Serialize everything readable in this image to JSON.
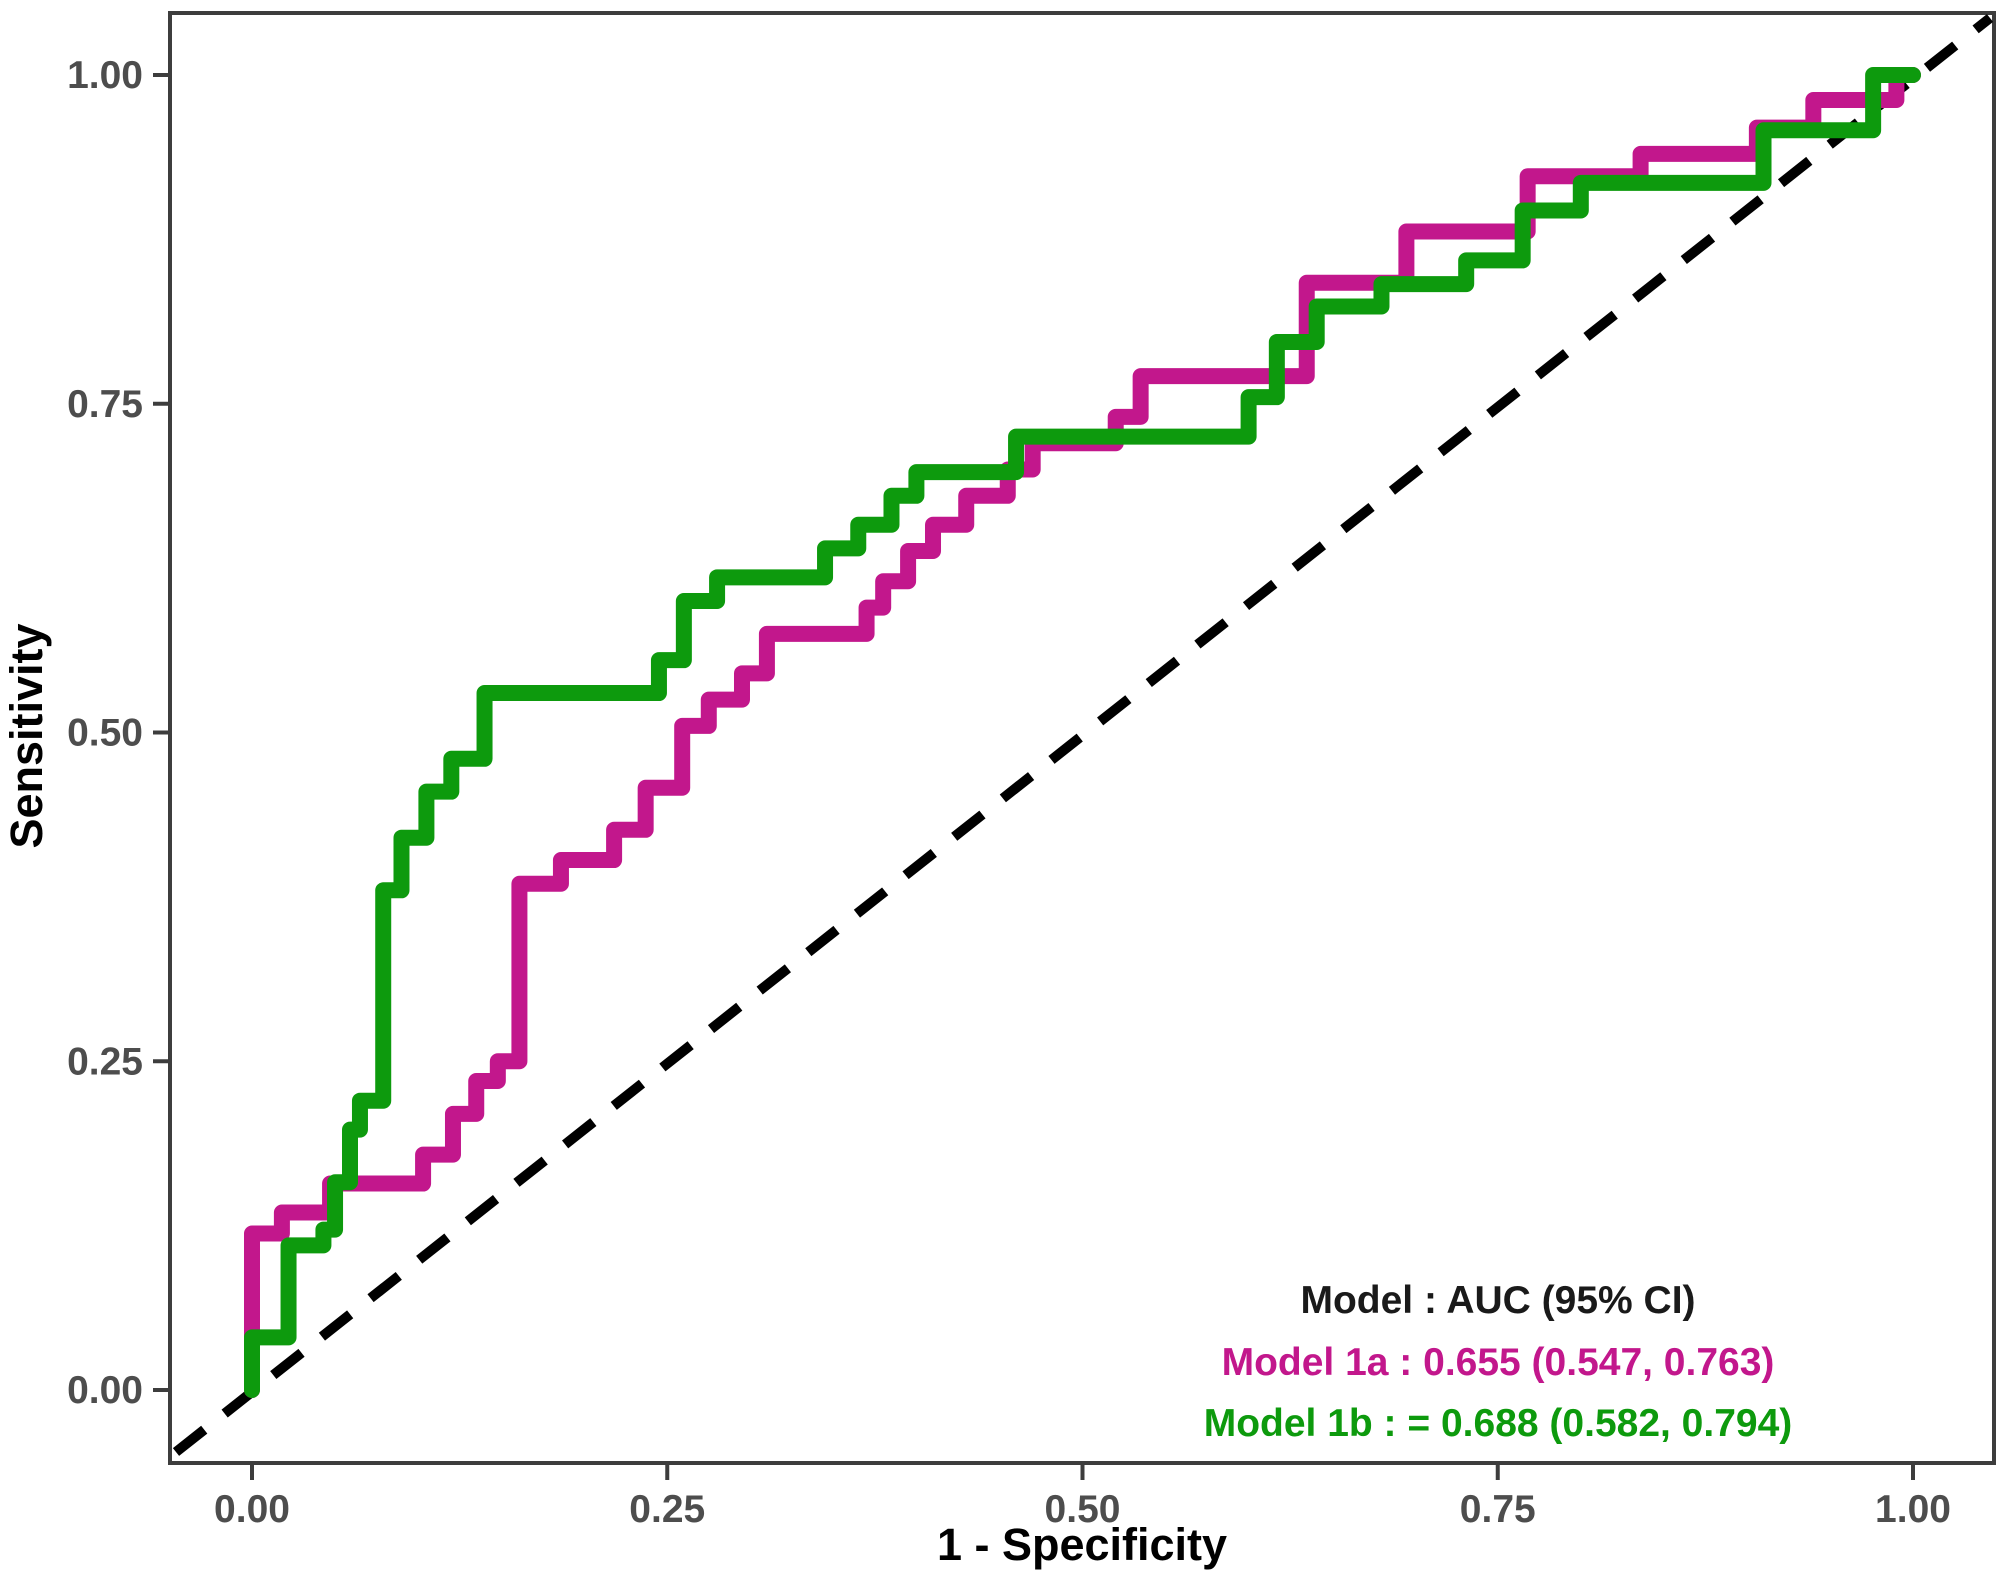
{
  "chart_data": {
    "type": "line",
    "subtype": "roc-step-curves",
    "title": "",
    "xlabel": "1 - Specificity",
    "ylabel": "Sensitivity",
    "xlim": [
      0,
      1
    ],
    "ylim": [
      0,
      1
    ],
    "grid": false,
    "x_ticks": [
      {
        "value": 0.0,
        "label": "0.00"
      },
      {
        "value": 0.25,
        "label": "0.25"
      },
      {
        "value": 0.5,
        "label": "0.50"
      },
      {
        "value": 0.75,
        "label": "0.75"
      },
      {
        "value": 1.0,
        "label": "1.00"
      }
    ],
    "y_ticks": [
      {
        "value": 0.0,
        "label": "0.00"
      },
      {
        "value": 0.25,
        "label": "0.25"
      },
      {
        "value": 0.5,
        "label": "0.50"
      },
      {
        "value": 0.75,
        "label": "0.75"
      },
      {
        "value": 1.0,
        "label": "1.00"
      }
    ],
    "reference_line": {
      "style": "dashed",
      "color": "#000000",
      "from": [
        0,
        0
      ],
      "to": [
        1,
        1
      ],
      "meaning": "chance diagonal"
    },
    "legend": {
      "position": "bottom-right",
      "header": "Model : AUC (95% CI)",
      "header_color": "#1a1a1a",
      "entries": [
        {
          "label": "Model 1a : 0.655 (0.547, 0.763)",
          "color": "#c2178c",
          "model": "Model 1a",
          "auc": 0.655,
          "ci_low": 0.547,
          "ci_high": 0.763
        },
        {
          "label": "Model 1b : = 0.688 (0.582, 0.794)",
          "color": "#0d9a0d",
          "model": "Model 1b",
          "auc": 0.688,
          "ci_low": 0.582,
          "ci_high": 0.794
        }
      ]
    },
    "series": [
      {
        "name": "Model 1a",
        "color": "#c2178c",
        "points": [
          [
            0,
            0
          ],
          [
            0,
            0.119
          ],
          [
            0.018,
            0.119
          ],
          [
            0.018,
            0.135
          ],
          [
            0.047,
            0.135
          ],
          [
            0.047,
            0.157
          ],
          [
            0.103,
            0.157
          ],
          [
            0.103,
            0.179
          ],
          [
            0.121,
            0.179
          ],
          [
            0.121,
            0.21
          ],
          [
            0.135,
            0.21
          ],
          [
            0.135,
            0.235
          ],
          [
            0.148,
            0.235
          ],
          [
            0.148,
            0.25
          ],
          [
            0.161,
            0.25
          ],
          [
            0.161,
            0.385
          ],
          [
            0.186,
            0.385
          ],
          [
            0.186,
            0.403
          ],
          [
            0.218,
            0.403
          ],
          [
            0.218,
            0.426
          ],
          [
            0.237,
            0.426
          ],
          [
            0.237,
            0.458
          ],
          [
            0.259,
            0.458
          ],
          [
            0.259,
            0.505
          ],
          [
            0.275,
            0.505
          ],
          [
            0.275,
            0.525
          ],
          [
            0.295,
            0.525
          ],
          [
            0.295,
            0.545
          ],
          [
            0.31,
            0.545
          ],
          [
            0.31,
            0.575
          ],
          [
            0.37,
            0.575
          ],
          [
            0.37,
            0.595
          ],
          [
            0.38,
            0.595
          ],
          [
            0.38,
            0.615
          ],
          [
            0.395,
            0.615
          ],
          [
            0.395,
            0.638
          ],
          [
            0.41,
            0.638
          ],
          [
            0.41,
            0.658
          ],
          [
            0.43,
            0.658
          ],
          [
            0.43,
            0.68
          ],
          [
            0.455,
            0.68
          ],
          [
            0.455,
            0.7
          ],
          [
            0.47,
            0.7
          ],
          [
            0.47,
            0.72
          ],
          [
            0.52,
            0.72
          ],
          [
            0.52,
            0.74
          ],
          [
            0.535,
            0.74
          ],
          [
            0.535,
            0.771
          ],
          [
            0.635,
            0.771
          ],
          [
            0.635,
            0.842
          ],
          [
            0.695,
            0.842
          ],
          [
            0.695,
            0.881
          ],
          [
            0.768,
            0.881
          ],
          [
            0.768,
            0.923
          ],
          [
            0.836,
            0.923
          ],
          [
            0.836,
            0.94
          ],
          [
            0.906,
            0.94
          ],
          [
            0.906,
            0.96
          ],
          [
            0.94,
            0.96
          ],
          [
            0.94,
            0.981
          ],
          [
            0.99,
            0.981
          ],
          [
            0.99,
            1
          ],
          [
            1,
            1
          ]
        ]
      },
      {
        "name": "Model 1b",
        "color": "#0d9a0d",
        "points": [
          [
            0,
            0
          ],
          [
            0,
            0.04
          ],
          [
            0.022,
            0.04
          ],
          [
            0.022,
            0.11
          ],
          [
            0.043,
            0.11
          ],
          [
            0.043,
            0.122
          ],
          [
            0.05,
            0.122
          ],
          [
            0.05,
            0.158
          ],
          [
            0.059,
            0.158
          ],
          [
            0.059,
            0.198
          ],
          [
            0.065,
            0.198
          ],
          [
            0.065,
            0.22
          ],
          [
            0.079,
            0.22
          ],
          [
            0.079,
            0.38
          ],
          [
            0.09,
            0.38
          ],
          [
            0.09,
            0.42
          ],
          [
            0.105,
            0.42
          ],
          [
            0.105,
            0.455
          ],
          [
            0.12,
            0.455
          ],
          [
            0.12,
            0.48
          ],
          [
            0.14,
            0.48
          ],
          [
            0.14,
            0.53
          ],
          [
            0.245,
            0.53
          ],
          [
            0.245,
            0.555
          ],
          [
            0.26,
            0.555
          ],
          [
            0.26,
            0.6
          ],
          [
            0.28,
            0.6
          ],
          [
            0.28,
            0.618
          ],
          [
            0.345,
            0.618
          ],
          [
            0.345,
            0.64
          ],
          [
            0.365,
            0.64
          ],
          [
            0.365,
            0.658
          ],
          [
            0.385,
            0.658
          ],
          [
            0.385,
            0.68
          ],
          [
            0.4,
            0.68
          ],
          [
            0.4,
            0.698
          ],
          [
            0.46,
            0.698
          ],
          [
            0.46,
            0.725
          ],
          [
            0.6,
            0.725
          ],
          [
            0.6,
            0.755
          ],
          [
            0.617,
            0.755
          ],
          [
            0.617,
            0.797
          ],
          [
            0.641,
            0.797
          ],
          [
            0.641,
            0.824
          ],
          [
            0.68,
            0.824
          ],
          [
            0.68,
            0.841
          ],
          [
            0.731,
            0.841
          ],
          [
            0.731,
            0.859
          ],
          [
            0.765,
            0.859
          ],
          [
            0.765,
            0.897
          ],
          [
            0.8,
            0.897
          ],
          [
            0.8,
            0.918
          ],
          [
            0.91,
            0.918
          ],
          [
            0.91,
            0.958
          ],
          [
            0.976,
            0.958
          ],
          [
            0.976,
            1
          ],
          [
            1,
            1
          ]
        ]
      }
    ]
  }
}
